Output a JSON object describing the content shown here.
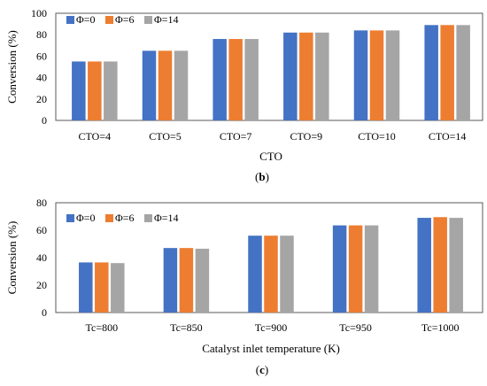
{
  "chart_data": [
    {
      "type": "bar",
      "panel_label": "b",
      "categories": [
        "CTO=4",
        "CTO=5",
        "CTO=7",
        "CTO=9",
        "CTO=10",
        "CTO=14"
      ],
      "series": [
        {
          "name": "Φ=0",
          "color": "#4472C4",
          "values": [
            55,
            65,
            76,
            82,
            84,
            89
          ]
        },
        {
          "name": "Φ=6",
          "color": "#ED7D31",
          "values": [
            55,
            65,
            76,
            82,
            84,
            89
          ]
        },
        {
          "name": "Φ=14",
          "color": "#A5A5A5",
          "values": [
            55,
            65,
            76,
            82,
            84,
            89
          ]
        }
      ],
      "xlabel": "CTO",
      "ylabel": "Conversion (%)",
      "ylim": [
        0,
        100
      ],
      "yticks": [
        0,
        20,
        40,
        60,
        80,
        100
      ],
      "grid": false,
      "legend_position": "top-left"
    },
    {
      "type": "bar",
      "panel_label": "c",
      "categories": [
        "Tc=800",
        "Tc=850",
        "Tc=900",
        "Tc=950",
        "Tc=1000"
      ],
      "series": [
        {
          "name": "Φ=0",
          "color": "#4472C4",
          "values": [
            36.5,
            47,
            56,
            63.5,
            69
          ]
        },
        {
          "name": "Φ=6",
          "color": "#ED7D31",
          "values": [
            36.5,
            47,
            56,
            63.5,
            69.5
          ]
        },
        {
          "name": "Φ=14",
          "color": "#A5A5A5",
          "values": [
            36,
            46.5,
            56,
            63.5,
            69
          ]
        }
      ],
      "xlabel": "Catalyst inlet temperature (K)",
      "ylabel": "Conversion (%)",
      "ylim": [
        0,
        80
      ],
      "yticks": [
        0,
        20,
        40,
        60,
        80
      ],
      "grid": false,
      "legend_position": "top-left"
    }
  ]
}
